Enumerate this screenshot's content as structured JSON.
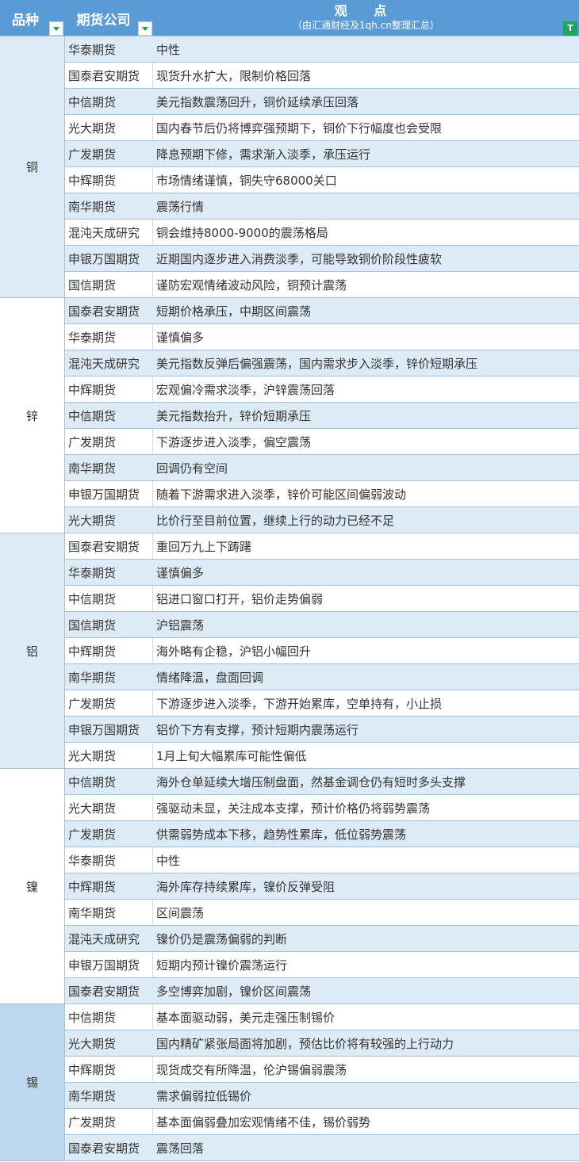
{
  "header": {
    "variety": "品种",
    "company": "期货公司",
    "view_title": "观 点",
    "view_subtitle": "（由汇通财经及1qh.cn整理汇总）",
    "filter_icon": "filter-icon",
    "dropdown_icon": "dropdown-arrow-icon"
  },
  "colors": {
    "header": "#5b9bd5",
    "shaded_row": "#ddebf7",
    "tin_group": "#bdd7ee",
    "filter": "#21a366",
    "border": "#9dc3e6"
  },
  "groups": [
    {
      "name": "铜",
      "rows": [
        [
          "华泰期货",
          "中性"
        ],
        [
          "国泰君安期货",
          "现货升水扩大，限制价格回落"
        ],
        [
          "中信期货",
          "美元指数震荡回升，铜价延续承压回落"
        ],
        [
          "光大期货",
          "国内春节后仍将博弈强预期下，铜价下行幅度也会受限"
        ],
        [
          "广发期货",
          "降息预期下修，需求渐入淡季，承压运行"
        ],
        [
          "中辉期货",
          "市场情绪谨慎，铜失守68000关口"
        ],
        [
          "南华期货",
          "震荡行情"
        ],
        [
          "混沌天成研究",
          "铜会维持8000-9000的震荡格局"
        ],
        [
          "申银万国期货",
          "近期国内逐步进入消费淡季，可能导致铜价阶段性疲软"
        ],
        [
          "国信期货",
          "谨防宏观情绪波动风险，铜预计震荡"
        ]
      ]
    },
    {
      "name": "锌",
      "rows": [
        [
          "国泰君安期货",
          "短期价格承压，中期区间震荡"
        ],
        [
          "华泰期货",
          "谨慎偏多"
        ],
        [
          "混沌天成研究",
          "美元指数反弹后偏强震荡，国内需求步入淡季，锌价短期承压"
        ],
        [
          "中辉期货",
          "宏观偏冷需求淡季，沪锌震荡回落"
        ],
        [
          "中信期货",
          "美元指数抬升，锌价短期承压"
        ],
        [
          "广发期货",
          "下游逐步进入淡季，偏空震荡"
        ],
        [
          "南华期货",
          "回调仍有空间"
        ],
        [
          "申银万国期货",
          "随着下游需求进入淡季，锌价可能区间偏弱波动"
        ],
        [
          "光大期货",
          "比价行至目前位置，继续上行的动力已经不足"
        ]
      ]
    },
    {
      "name": "铝",
      "rows": [
        [
          "国泰君安期货",
          "重回万九上下踌躇"
        ],
        [
          "华泰期货",
          "谨慎偏多"
        ],
        [
          "中信期货",
          "铝进口窗口打开，铝价走势偏弱"
        ],
        [
          "国信期货",
          "沪铝震荡"
        ],
        [
          "中辉期货",
          "海外略有企稳，沪铝小幅回升"
        ],
        [
          "南华期货",
          "情绪降温，盘面回调"
        ],
        [
          "广发期货",
          "下游逐步进入淡季，下游开始累库，空单持有，小止损"
        ],
        [
          "申银万国期货",
          "铝价下方有支撑，预计短期内震荡运行"
        ],
        [
          "光大期货",
          "1月上旬大幅累库可能性偏低"
        ]
      ]
    },
    {
      "name": "镍",
      "rows": [
        [
          "中信期货",
          "海外仓单延续大增压制盘面，然基金调仓仍有短时多头支撑"
        ],
        [
          "光大期货",
          "强驱动未显，关注成本支撑，预计价格仍将弱势震荡"
        ],
        [
          "广发期货",
          "供需弱势成本下移，趋势性累库，低位弱势震荡"
        ],
        [
          "华泰期货",
          "中性"
        ],
        [
          "中辉期货",
          "海外库存持续累库，镍价反弹受阻"
        ],
        [
          "南华期货",
          "区间震荡"
        ],
        [
          "混沌天成研究",
          "镍价仍是震荡偏弱的判断"
        ],
        [
          "申银万国期货",
          "短期内预计镍价震荡运行"
        ],
        [
          "国泰君安期货",
          "多空博弈加剧，镍价区间震荡"
        ]
      ]
    },
    {
      "name": "锡",
      "rows": [
        [
          "中信期货",
          "基本面驱动弱，美元走强压制锡价"
        ],
        [
          "光大期货",
          "国内精矿紧张局面将加剧，预估比价将有较强的上行动力"
        ],
        [
          "中辉期货",
          "现货成交有所降温，伦沪锡偏弱震荡"
        ],
        [
          "南华期货",
          "需求偏弱拉低锡价"
        ],
        [
          "广发期货",
          "基本面偏弱叠加宏观情绪不佳，锡价弱势"
        ],
        [
          "国泰君安期货",
          "震荡回落"
        ]
      ]
    }
  ]
}
